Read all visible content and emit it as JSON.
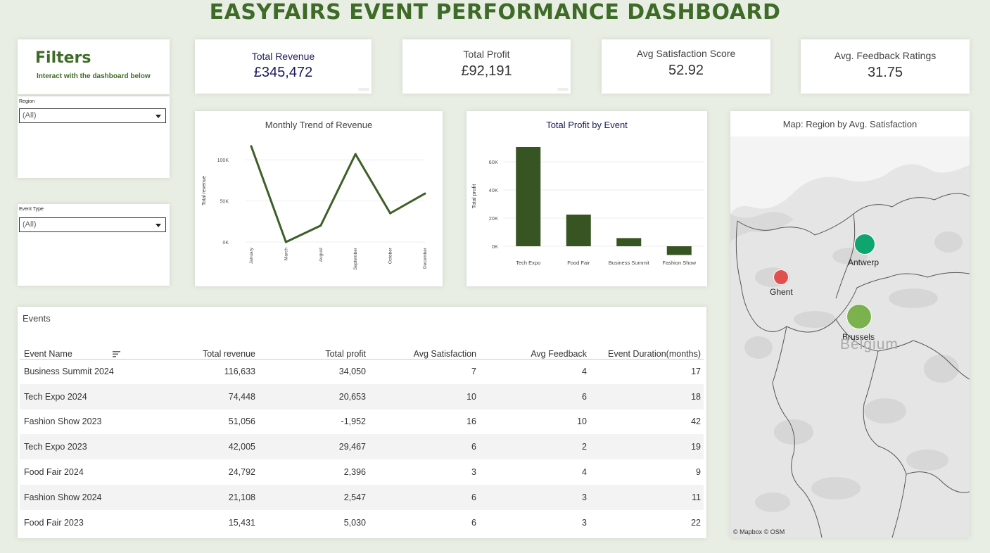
{
  "dashboard_title": "EASYFAIRS EVENT PERFORMANCE DASHBOARD",
  "filters": {
    "title": "Filters",
    "subtitle": "Interact with the dashboard below",
    "region": {
      "label": "Region",
      "value": "(All)"
    },
    "event_type": {
      "label": "Event Type",
      "value": "(All)"
    }
  },
  "kpis": {
    "revenue": {
      "label": "Total Revenue",
      "value": "£345,472"
    },
    "profit": {
      "label": "Total Profit",
      "value": "£92,191"
    },
    "satisfaction": {
      "label": "Avg Satisfaction Score",
      "value": "52.92"
    },
    "feedback": {
      "label": "Avg. Feedback Ratings",
      "value": "31.75"
    }
  },
  "colors": {
    "title_green": "#3e6b27",
    "line_green": "#3e5f28",
    "bar_green": "#375423",
    "kpi_blue": "#1a1a5e",
    "antwerp": "#0fa56f",
    "ghent": "#e0504f",
    "brussels": "#7bb24e"
  },
  "chart_data": [
    {
      "type": "line",
      "title": "Monthly Trend of Revenue",
      "xlabel": "",
      "ylabel": "Total revenue",
      "categories": [
        "January",
        "March",
        "August",
        "September",
        "October",
        "December"
      ],
      "values": [
        116633,
        0,
        20000,
        107000,
        35000,
        59000
      ],
      "yticks": [
        "100K",
        "50K",
        "0K"
      ],
      "ylim": [
        0,
        125000
      ]
    },
    {
      "type": "bar",
      "title": "Total Profit by Event",
      "xlabel": "",
      "ylabel": "Total profit",
      "categories": [
        "Tech Expo",
        "Food Fair",
        "Business Summit",
        "Fashion Show"
      ],
      "values": [
        70500,
        22500,
        5800,
        -6200
      ],
      "yticks": [
        "60K",
        "40K",
        "20K",
        "0K"
      ],
      "ylim": [
        -8000,
        75000
      ]
    }
  ],
  "table": {
    "title": "Events",
    "columns": [
      "Event Name",
      "Total revenue",
      "Total profit",
      "Avg Satisfaction",
      "Avg Feedback",
      "Event Duration(months)"
    ],
    "rows": [
      [
        "Business Summit 2024",
        "116,633",
        "34,050",
        "7",
        "4",
        "17"
      ],
      [
        "Tech Expo 2024",
        "74,448",
        "20,653",
        "10",
        "6",
        "18"
      ],
      [
        "Fashion Show 2023",
        "51,056",
        "-1,952",
        "16",
        "10",
        "42"
      ],
      [
        "Tech Expo 2023",
        "42,005",
        "29,467",
        "6",
        "2",
        "19"
      ],
      [
        "Food Fair 2024",
        "24,792",
        "2,396",
        "3",
        "4",
        "9"
      ],
      [
        "Fashion Show 2024",
        "21,108",
        "2,547",
        "6",
        "3",
        "11"
      ],
      [
        "Food Fair 2023",
        "15,431",
        "5,030",
        "6",
        "3",
        "22"
      ]
    ]
  },
  "map": {
    "title": "Map: Region by Avg. Satisfaction",
    "country_label": "Belgium",
    "credit": "© Mapbox  © OSM",
    "cities": [
      {
        "name": "Antwerp",
        "color": "#0fa56f"
      },
      {
        "name": "Ghent",
        "color": "#e0504f"
      },
      {
        "name": "Brussels",
        "color": "#7bb24e"
      }
    ]
  }
}
